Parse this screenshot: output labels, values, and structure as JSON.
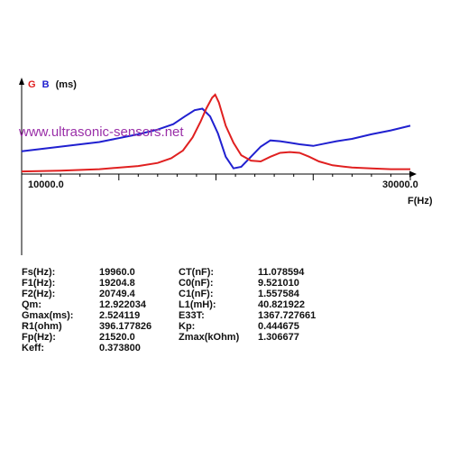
{
  "watermark": "www.ultrasonic-sensors.net",
  "chart_data": {
    "type": "line",
    "legend": [
      {
        "letter": "G",
        "color": "#e02020"
      },
      {
        "letter": "B",
        "color": "#2020d0"
      },
      {
        "letter": "(ms)",
        "color": "#111111"
      }
    ],
    "x_axis_label": "F(Hz)",
    "x_tick_left": "10000.0",
    "x_tick_right": "30000.0",
    "xlim": [
      10000,
      30000
    ],
    "ylim": [
      0,
      1
    ],
    "grid": false,
    "series": [
      {
        "color": "#e02020",
        "x": [
          10000,
          12000,
          14000,
          16000,
          17000,
          17700,
          18300,
          18800,
          19200,
          19500,
          19800,
          19960,
          20150,
          20500,
          20900,
          21300,
          21800,
          22300,
          22800,
          23300,
          23800,
          24300,
          24800,
          25300,
          26000,
          27000,
          28000,
          29000,
          30000
        ],
        "y": [
          0.01,
          0.02,
          0.04,
          0.08,
          0.12,
          0.18,
          0.28,
          0.45,
          0.65,
          0.82,
          0.96,
          1.0,
          0.9,
          0.6,
          0.38,
          0.22,
          0.15,
          0.14,
          0.2,
          0.25,
          0.26,
          0.25,
          0.2,
          0.14,
          0.09,
          0.06,
          0.05,
          0.04,
          0.04
        ]
      },
      {
        "color": "#2020d0",
        "x": [
          10000,
          12000,
          14000,
          16000,
          17000,
          17800,
          18400,
          18900,
          19300,
          19700,
          20100,
          20500,
          20900,
          21300,
          21800,
          22300,
          22800,
          23300,
          23800,
          24300,
          25000,
          25600,
          26200,
          27000,
          28000,
          29000,
          30000
        ],
        "y": [
          0.27,
          0.33,
          0.39,
          0.49,
          0.55,
          0.62,
          0.72,
          0.8,
          0.82,
          0.72,
          0.5,
          0.2,
          0.05,
          0.07,
          0.2,
          0.33,
          0.41,
          0.4,
          0.38,
          0.36,
          0.34,
          0.37,
          0.4,
          0.43,
          0.49,
          0.54,
          0.6
        ]
      }
    ]
  },
  "parameters": [
    {
      "l1": "Fs(Hz):",
      "v1": "19960.0",
      "l2": "CT(nF):",
      "v2": "11.078594"
    },
    {
      "l1": "F1(Hz):",
      "v1": "19204.8",
      "l2": "C0(nF):",
      "v2": "9.521010"
    },
    {
      "l1": "F2(Hz):",
      "v1": "20749.4",
      "l2": "C1(nF):",
      "v2": "1.557584"
    },
    {
      "l1": "Qm:",
      "v1": "12.922034",
      "l2": "L1(mH):",
      "v2": "40.821922"
    },
    {
      "l1": "Gmax(ms):",
      "v1": "2.524119",
      "l2": "E33T:",
      "v2": "1367.727661"
    },
    {
      "l1": "R1(ohm)",
      "v1": "396.177826",
      "l2": "Kp:",
      "v2": "0.444675"
    },
    {
      "l1": "Fp(Hz):",
      "v1": "21520.0",
      "l2": "Zmax(kOhm)",
      "v2": "1.306677"
    },
    {
      "l1": "Keff:",
      "v1": "0.373800",
      "l2": "",
      "v2": ""
    }
  ]
}
